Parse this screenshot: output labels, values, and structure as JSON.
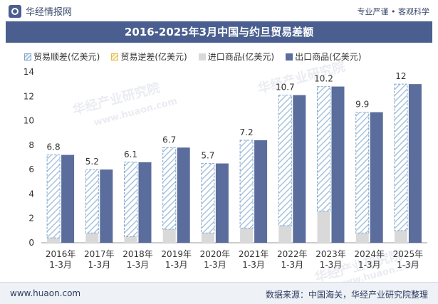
{
  "header": {
    "brand": "华经情报网",
    "slogan": "专业严谨 • 客观科学"
  },
  "chart_data": {
    "type": "bar",
    "title": "2016-2025年3月中国与约旦贸易差额",
    "categories": [
      "2016年\n1-3月",
      "2017年\n1-3月",
      "2018年\n1-3月",
      "2019年\n1-3月",
      "2020年\n1-3月",
      "2021年\n1-3月",
      "2022年\n1-3月",
      "2023年\n1-3月",
      "2024年\n1-3月",
      "2025年\n1-3月"
    ],
    "series": [
      {
        "name": "贸易顺差(亿美元)",
        "values": [
          6.8,
          5.2,
          6.1,
          6.7,
          5.7,
          7.2,
          10.7,
          10.2,
          9.9,
          12
        ]
      },
      {
        "name": "贸易逆差(亿美元)",
        "values": [
          0,
          0,
          0,
          0,
          0,
          0,
          0,
          0,
          0,
          0
        ]
      },
      {
        "name": "进口商品(亿美元)",
        "values": [
          0.4,
          0.8,
          0.5,
          1.1,
          0.8,
          1.2,
          1.4,
          2.6,
          0.8,
          1.0
        ]
      },
      {
        "name": "出口商品(亿美元)",
        "values": [
          7.2,
          6.0,
          6.6,
          7.8,
          6.5,
          8.4,
          12.1,
          12.8,
          10.7,
          13.0
        ]
      }
    ],
    "data_labels": [
      "6.8",
      "5.2",
      "6.1",
      "6.7",
      "5.7",
      "7.2",
      "10.7",
      "10.2",
      "9.9",
      "12"
    ],
    "ylim": [
      0,
      14
    ],
    "yticks": [
      0,
      2,
      4,
      6,
      8,
      10,
      12,
      14
    ],
    "xlabel": "",
    "ylabel": "",
    "colors": {
      "surplus": "#a9c4dd",
      "deficit": "#f3d27a",
      "import": "#d9d9d9",
      "export": "#5a6d9c"
    }
  },
  "footer": {
    "website": "www.huaon.com",
    "source": "数据来源：中国海关，华经产业研究院整理"
  },
  "watermarks": [
    "华经产业研究院",
    "www.huaon.com"
  ]
}
